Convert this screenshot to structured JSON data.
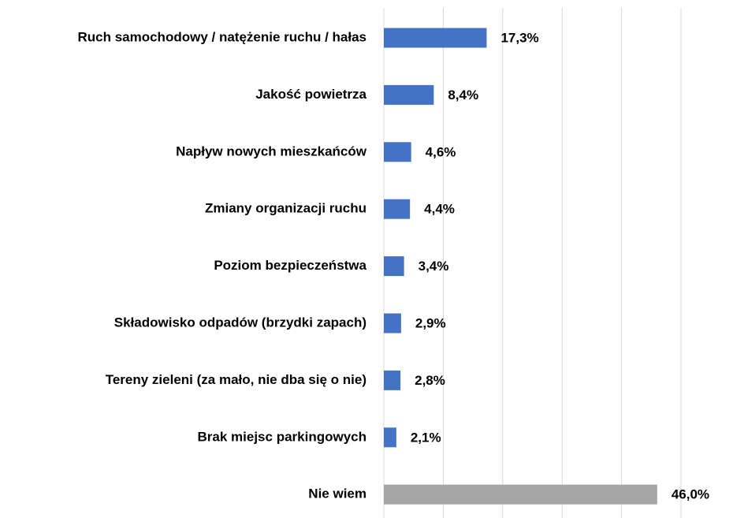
{
  "chart_data": {
    "type": "barh",
    "categories": [
      "Ruch samochodowy / natężenie ruchu / hałas",
      "Jakość powietrza",
      "Napływ nowych mieszkańców",
      "Zmiany organizacji ruchu",
      "Poziom bezpieczeństwa",
      "Składowisko odpadów (brzydki zapach)",
      "Tereny zieleni (za mało, nie dba się o nie)",
      "Brak miejsc parkingowych",
      "Nie wiem"
    ],
    "values": [
      17.3,
      8.4,
      4.6,
      4.4,
      3.4,
      2.9,
      2.8,
      2.1,
      46.0
    ],
    "value_labels": [
      "17,3%",
      "8,4%",
      "4,6%",
      "4,4%",
      "3,4%",
      "2,9%",
      "2,8%",
      "2,1%",
      "46,0%"
    ],
    "colors": [
      "#4472c4",
      "#4472c4",
      "#4472c4",
      "#4472c4",
      "#4472c4",
      "#4472c4",
      "#4472c4",
      "#4472c4",
      "#a5a5a5"
    ],
    "xlim": [
      0,
      50
    ],
    "xticks": [
      0,
      10,
      20,
      30,
      40,
      50
    ],
    "grid": true
  }
}
